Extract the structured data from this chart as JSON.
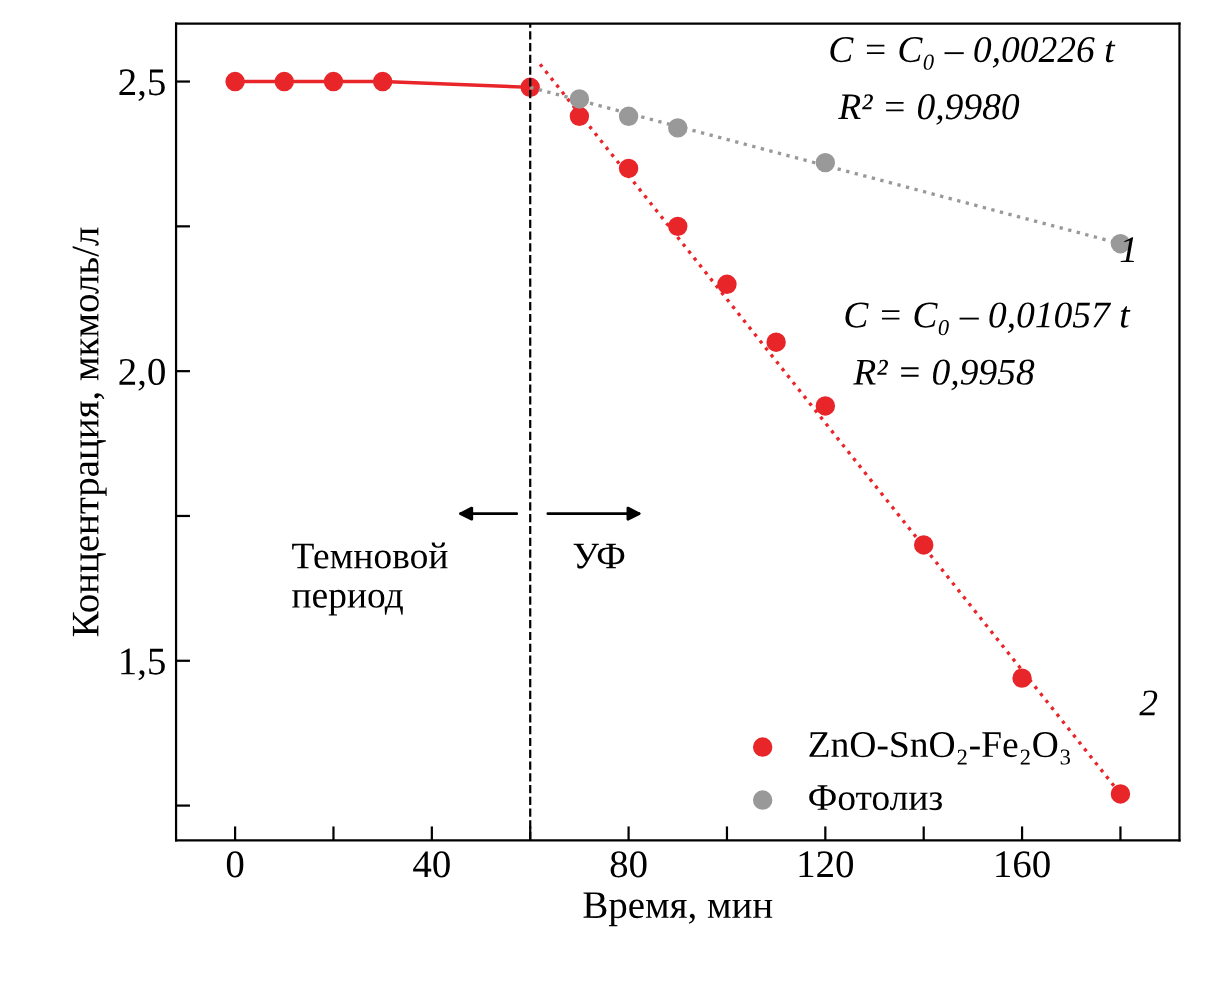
{
  "chart_data": {
    "type": "scatter",
    "xlabel": "Время, мин",
    "ylabel": "Концентрация, мкмоль/л",
    "xlim": [
      -12,
      192
    ],
    "ylim": [
      1.19,
      2.6
    ],
    "xticks": [
      0,
      {
        "value": 20,
        "label": null
      },
      40,
      {
        "value": 60,
        "label": null
      },
      80,
      {
        "value": 100,
        "label": null
      },
      120,
      {
        "value": 140,
        "label": null
      },
      160,
      {
        "value": 180,
        "label": null
      }
    ],
    "yticks": [
      {
        "value": 1.25,
        "label": null
      },
      {
        "value": 1.5,
        "label": "1,5"
      },
      {
        "value": 1.75,
        "label": null
      },
      {
        "value": 2.0,
        "label": "2,0"
      },
      {
        "value": 2.25,
        "label": null
      },
      {
        "value": 2.5,
        "label": "2,5"
      }
    ],
    "series": [
      {
        "type": "line",
        "color": "#e8262a",
        "x": [
          0,
          10,
          20,
          30,
          60
        ],
        "values": [
          2.5,
          2.5,
          2.5,
          2.5,
          2.49
        ],
        "marker": "circle",
        "line_style": "solid"
      },
      {
        "name": "ZnO-SnO₂-Fe₂O₃",
        "color": "#e8262a",
        "x": [
          70,
          80,
          90,
          100,
          110,
          120,
          140,
          160,
          180
        ],
        "values": [
          2.44,
          2.35,
          2.25,
          2.15,
          2.05,
          1.94,
          1.7,
          1.47,
          1.27
        ],
        "marker": "circle"
      },
      {
        "name": "Фотолиз",
        "color": "#999999",
        "x": [
          70,
          80,
          90,
          120,
          180
        ],
        "values": [
          2.47,
          2.44,
          2.42,
          2.36,
          2.22
        ],
        "marker": "circle"
      },
      {
        "type": "line",
        "color": "#e8262a",
        "x": [
          62,
          180
        ],
        "values": [
          2.53,
          1.27
        ],
        "marker": "none",
        "line_style": "dotted"
      },
      {
        "type": "line",
        "color": "#999999",
        "x": [
          60,
          180
        ],
        "values": [
          2.49,
          2.22
        ],
        "marker": "none",
        "line_style": "dotted"
      }
    ],
    "ref_lines": [
      {
        "axis": "x",
        "value": 60,
        "color": "#000000",
        "line_style": "dashed"
      }
    ],
    "annotations": [
      "C = C₀ – 0,00226 t",
      "R² = 0,9980",
      "C = C₀ – 0,01057 t",
      "R² = 0,9958",
      "1",
      "2",
      "Темновой\nпериод",
      "УФ"
    ],
    "legend": "bottom"
  }
}
